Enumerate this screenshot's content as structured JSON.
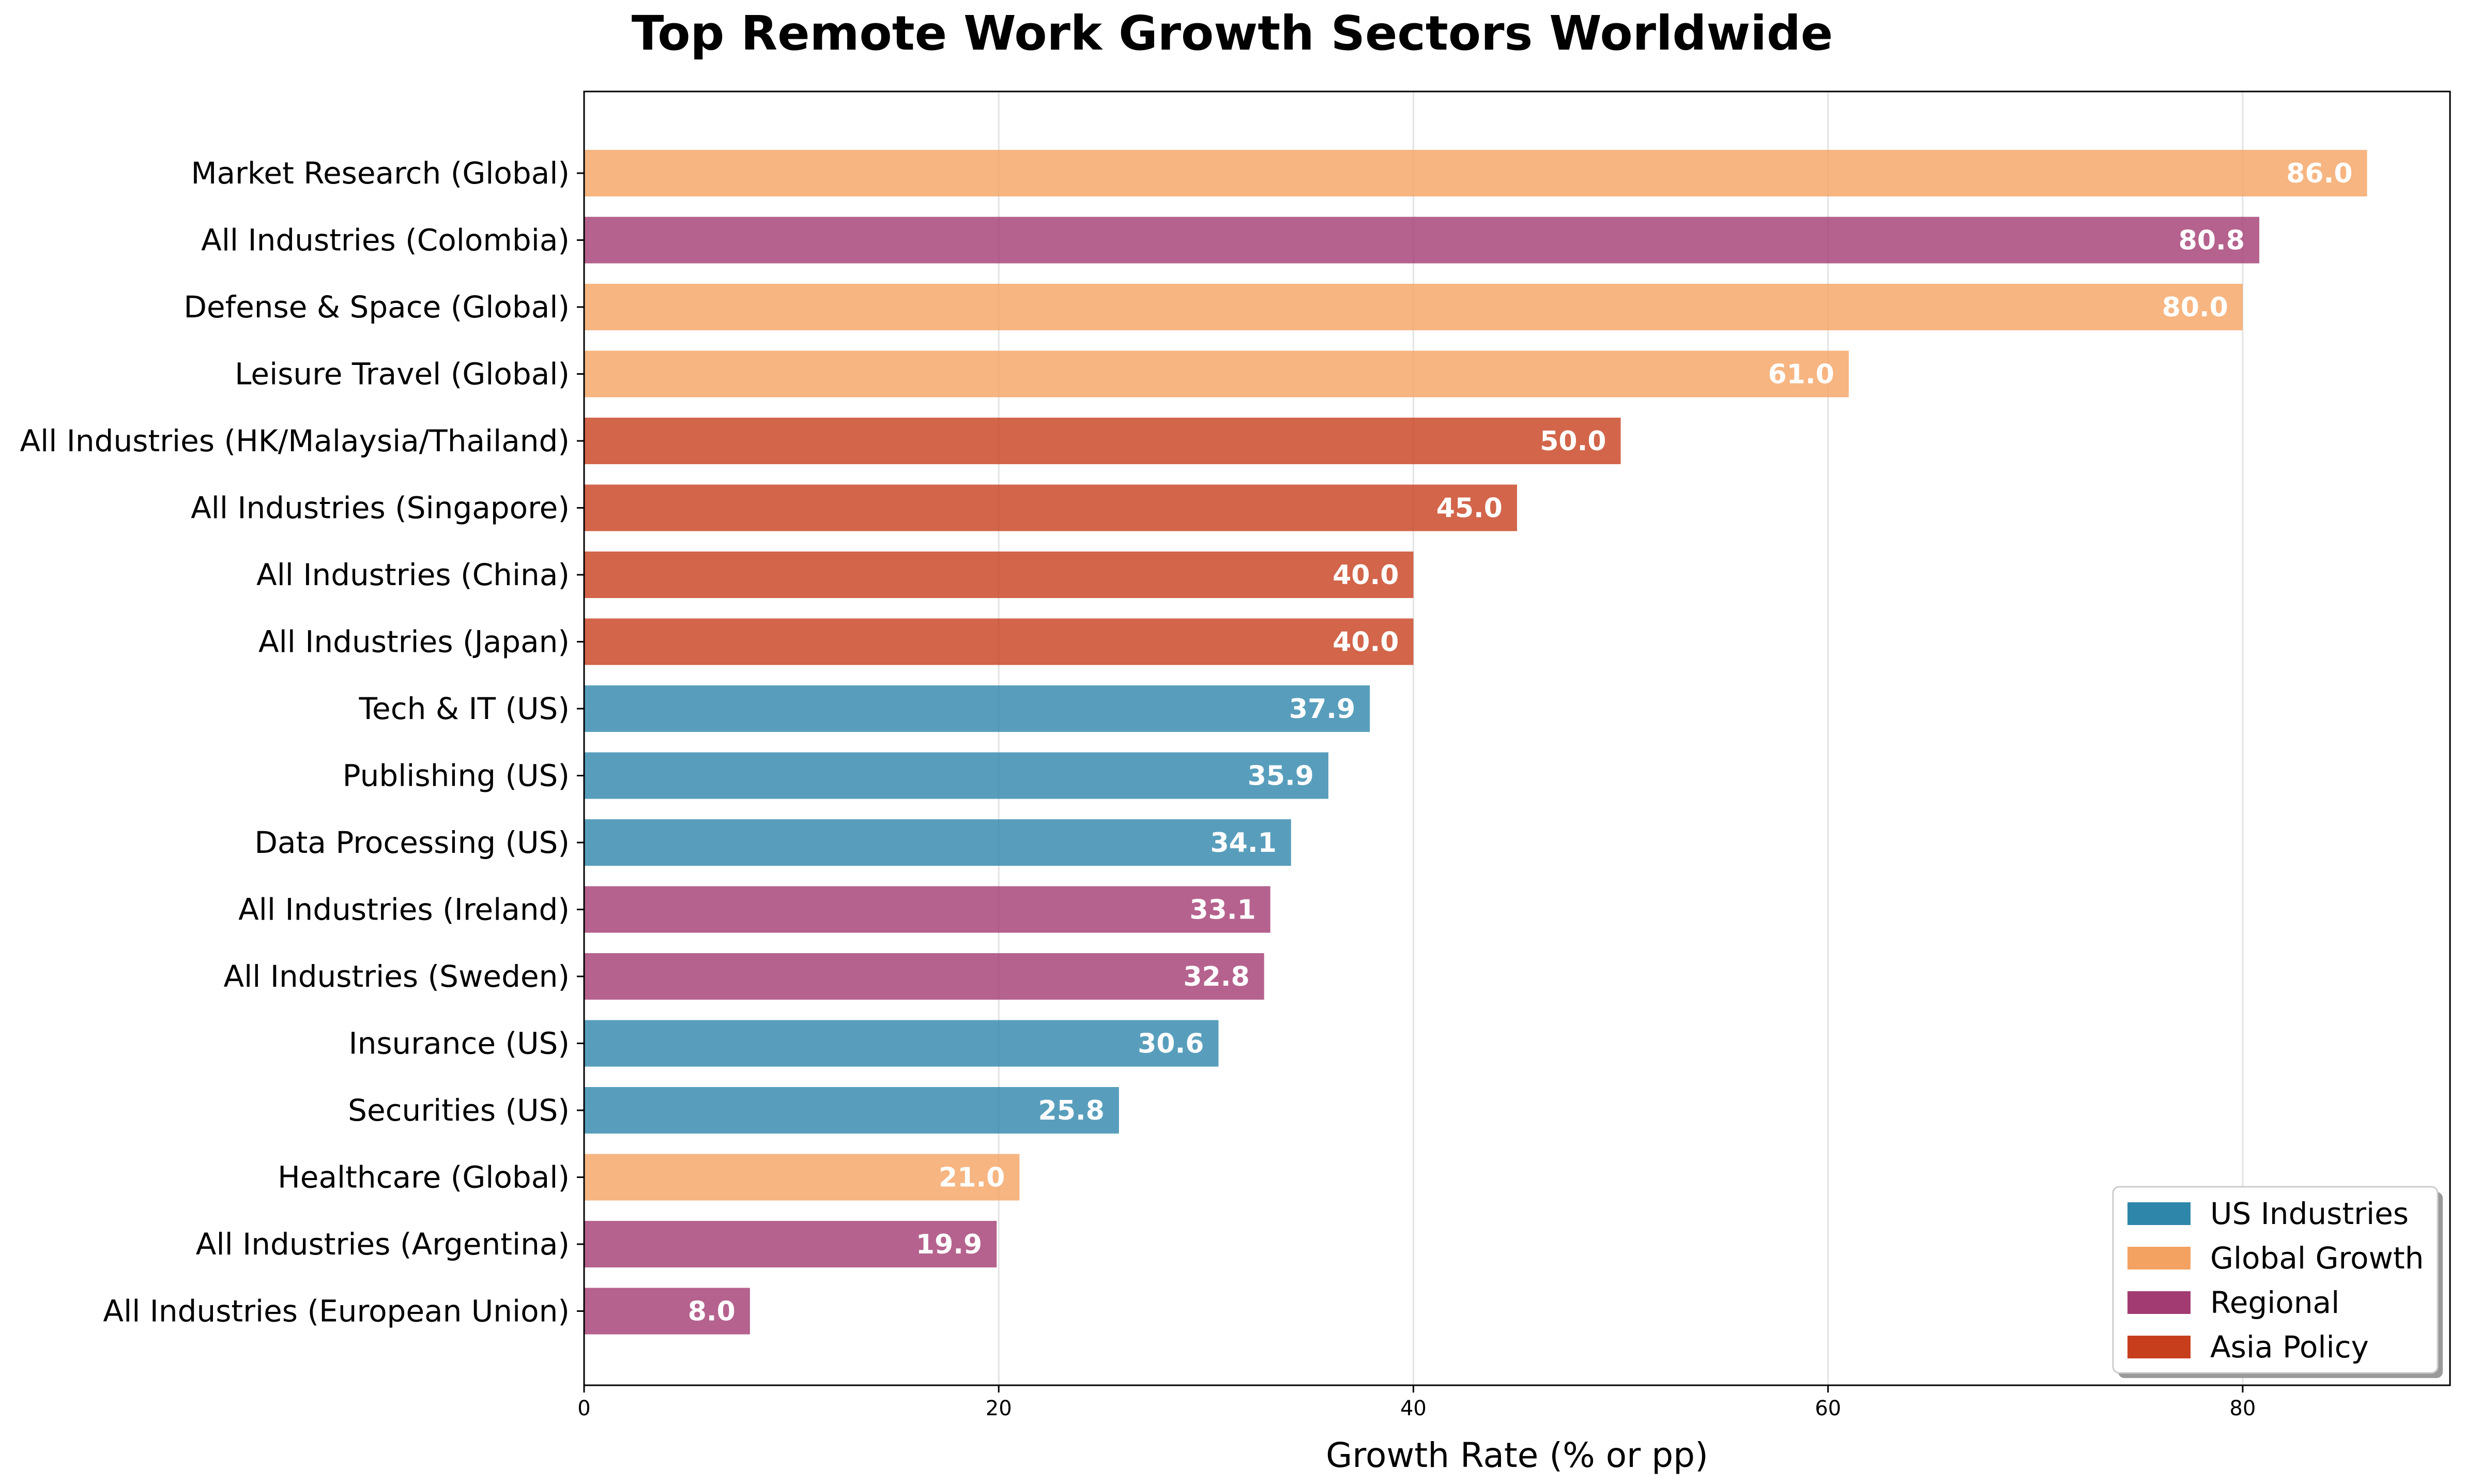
{
  "chart_data": {
    "type": "bar",
    "orientation": "horizontal",
    "title": "Top Remote Work Growth Sectors Worldwide",
    "xlabel": "Growth Rate (% or pp)",
    "ylabel": "",
    "xlim": [
      0,
      90
    ],
    "xticks": [
      0,
      20,
      40,
      60,
      80
    ],
    "grid": "vertical",
    "legend_position": "lower-right",
    "groups": [
      {
        "name": "US Industries",
        "color": "#2e86ab"
      },
      {
        "name": "Global Growth",
        "color": "#f4a261"
      },
      {
        "name": "Regional",
        "color": "#a23b72"
      },
      {
        "name": "Asia Policy",
        "color": "#c73e1d"
      }
    ],
    "bars": [
      {
        "label": "Market Research (Global)",
        "value": 86.0,
        "value_label": "86.0",
        "group": 1
      },
      {
        "label": "All Industries (Colombia)",
        "value": 80.8,
        "value_label": "80.8",
        "group": 2
      },
      {
        "label": "Defense & Space (Global)",
        "value": 80.0,
        "value_label": "80.0",
        "group": 1
      },
      {
        "label": "Leisure Travel (Global)",
        "value": 61.0,
        "value_label": "61.0",
        "group": 1
      },
      {
        "label": "All Industries (HK/Malaysia/Thailand)",
        "value": 50.0,
        "value_label": "50.0",
        "group": 3
      },
      {
        "label": "All Industries (Singapore)",
        "value": 45.0,
        "value_label": "45.0",
        "group": 3
      },
      {
        "label": "All Industries (China)",
        "value": 40.0,
        "value_label": "40.0",
        "group": 3
      },
      {
        "label": "All Industries (Japan)",
        "value": 40.0,
        "value_label": "40.0",
        "group": 3
      },
      {
        "label": "Tech & IT (US)",
        "value": 37.9,
        "value_label": "37.9",
        "group": 0
      },
      {
        "label": "Publishing (US)",
        "value": 35.9,
        "value_label": "35.9",
        "group": 0
      },
      {
        "label": "Data Processing (US)",
        "value": 34.1,
        "value_label": "34.1",
        "group": 0
      },
      {
        "label": "All Industries (Ireland)",
        "value": 33.1,
        "value_label": "33.1",
        "group": 2
      },
      {
        "label": "All Industries (Sweden)",
        "value": 32.8,
        "value_label": "32.8",
        "group": 2
      },
      {
        "label": "Insurance (US)",
        "value": 30.6,
        "value_label": "30.6",
        "group": 0
      },
      {
        "label": "Securities (US)",
        "value": 25.8,
        "value_label": "25.8",
        "group": 0
      },
      {
        "label": "Healthcare (Global)",
        "value": 21.0,
        "value_label": "21.0",
        "group": 1
      },
      {
        "label": "All Industries (Argentina)",
        "value": 19.9,
        "value_label": "19.9",
        "group": 2
      },
      {
        "label": "All Industries (European Union)",
        "value": 8.0,
        "value_label": "8.0",
        "group": 2
      }
    ]
  }
}
